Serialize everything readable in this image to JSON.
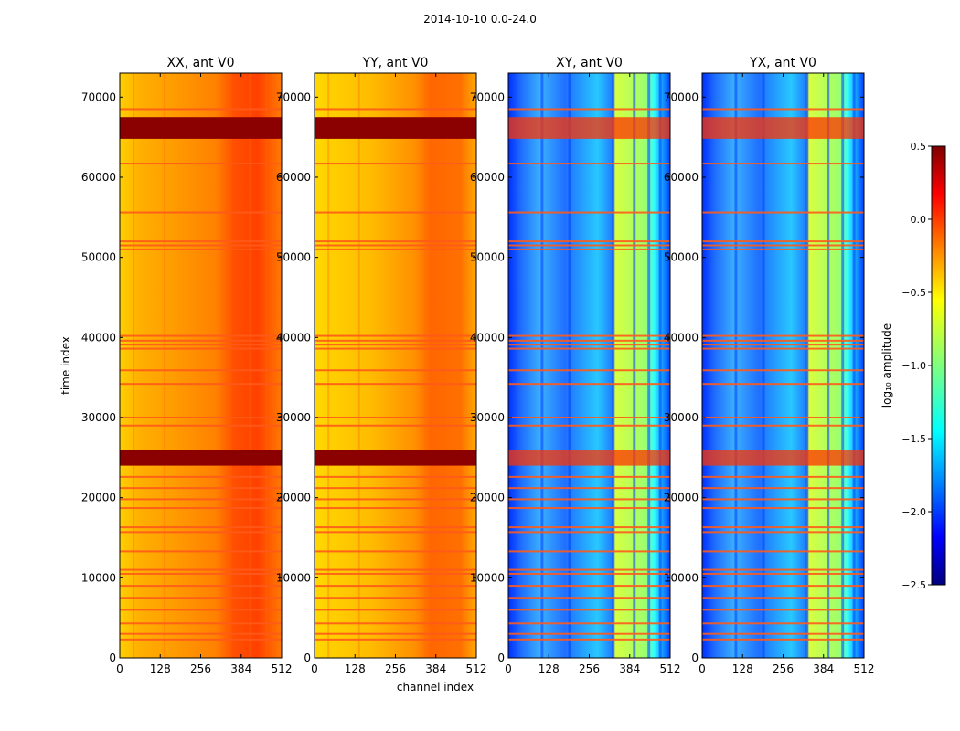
{
  "figure": {
    "suptitle": "2014-10-10 0.0-24.0"
  },
  "chart_data": {
    "type": "heatmap",
    "shared_xlabel": "channel index",
    "shared_ylabel": "time index",
    "xlim": [
      0,
      512
    ],
    "ylim": [
      0,
      73000
    ],
    "xticks": [
      "0",
      "128",
      "256",
      "384",
      "512"
    ],
    "xtick_values": [
      0,
      128,
      256,
      384,
      512
    ],
    "yticks": [
      "0",
      "10000",
      "20000",
      "30000",
      "40000",
      "50000",
      "60000",
      "70000"
    ],
    "ytick_values": [
      0,
      10000,
      20000,
      30000,
      40000,
      50000,
      60000,
      70000
    ],
    "panels": [
      {
        "title": "XX, ant V0",
        "kind": "auto",
        "band_color": "#8b0000"
      },
      {
        "title": "YY, ant V0",
        "kind": "auto",
        "band_color": "#8b0000"
      },
      {
        "title": "XY, ant V0",
        "kind": "cross",
        "band_color": "#ff3300"
      },
      {
        "title": "YX, ant V0",
        "kind": "cross",
        "band_color": "#ff3300"
      }
    ],
    "strong_flag_bands": [
      [
        64800,
        67500
      ],
      [
        24000,
        25900
      ]
    ],
    "flag_lines": [
      68500,
      61700,
      55600,
      52000,
      51500,
      51000,
      40200,
      39600,
      39100,
      38600,
      35900,
      34200,
      30000,
      29000,
      22600,
      21200,
      19800,
      18700,
      16300,
      15700,
      13300,
      11000,
      10500,
      9000,
      7500,
      6000,
      4300,
      3000,
      2300
    ],
    "colorbar": {
      "label": "log₁₀ amplitude",
      "range": [
        -2.5,
        0.5
      ],
      "ticks": [
        "0.5",
        "0.0",
        "−0.5",
        "−1.0",
        "−1.5",
        "−2.0",
        "−2.5"
      ],
      "tick_values": [
        0.5,
        0.0,
        -0.5,
        -1.0,
        -1.5,
        -2.0,
        -2.5
      ],
      "colormap": "jet"
    }
  }
}
